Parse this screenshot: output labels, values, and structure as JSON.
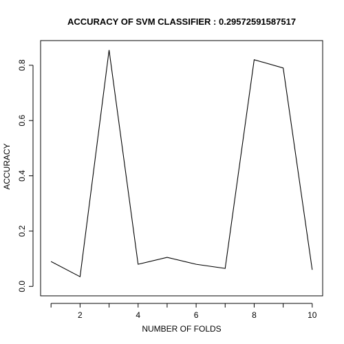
{
  "chart_data": {
    "type": "line",
    "title": "ACCURACY OF SVM CLASSIFIER :  0.29572591587517",
    "xlabel": "NUMBER OF FOLDS",
    "ylabel": "ACCURACY",
    "x": [
      1,
      2,
      3,
      4,
      5,
      6,
      7,
      8,
      9,
      10
    ],
    "series": [
      {
        "values": [
          0.09,
          0.035,
          0.855,
          0.08,
          0.105,
          0.08,
          0.065,
          0.82,
          0.79,
          0.06
        ],
        "color": "#000000"
      }
    ],
    "xlim": [
      0.64,
      10.36
    ],
    "ylim": [
      0.0,
      0.855
    ],
    "x_ticks": [
      2,
      4,
      6,
      8,
      10
    ],
    "x_tick_labels": [
      "2",
      "4",
      "6",
      "8",
      "10"
    ],
    "y_ticks": [
      0.0,
      0.2,
      0.4,
      0.6,
      0.8
    ],
    "y_tick_labels": [
      "0.0",
      "0.2",
      "0.4",
      "0.6",
      "0.8"
    ],
    "grid": false,
    "legend": "none"
  }
}
